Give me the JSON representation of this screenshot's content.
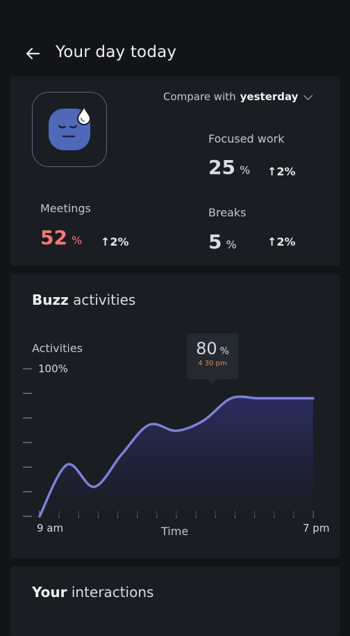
{
  "header": {
    "title": "Your day today"
  },
  "summary": {
    "compare_prefix": "Compare with",
    "compare_value": "yesterday",
    "meetings": {
      "label": "Meetings",
      "value": "52",
      "unit": "%",
      "change": "2%"
    },
    "focused_work": {
      "label": "Focused work",
      "value": "25",
      "unit": "%",
      "change": "2%"
    },
    "breaks": {
      "label": "Breaks",
      "value": "5",
      "unit": "%",
      "change": "2%"
    }
  },
  "buzz": {
    "title_bold": "Buzz",
    "title_rest": " activities",
    "tooltip_value": "80",
    "tooltip_unit": "%",
    "tooltip_time": "4 30 pm"
  },
  "interactions": {
    "title_bold": "Your",
    "title_rest": " interactions"
  },
  "chart_data": {
    "type": "area",
    "ylabel": "Activities",
    "xlabel": "Time",
    "y_tick_label": "100%",
    "x_start_label": "9 am",
    "x_end_label": "7 pm",
    "x": [
      9,
      10,
      11,
      12,
      13,
      14,
      15,
      16,
      17,
      18,
      19
    ],
    "values": [
      0,
      35,
      20,
      42,
      62,
      58,
      65,
      80,
      80,
      80,
      80
    ],
    "ylim": [
      0,
      100
    ],
    "highlight": {
      "x": "4 30 pm",
      "value": 80
    },
    "colors": {
      "line": "#7b83d6",
      "fill_top": "#2c2f66",
      "fill_bottom": "#1a1d22"
    }
  }
}
